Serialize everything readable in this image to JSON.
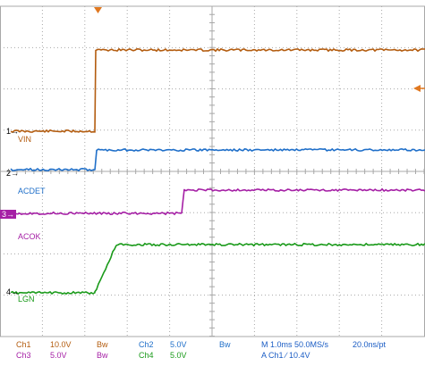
{
  "colors": {
    "ch1": "#b35c0f",
    "ch2": "#1f6fc9",
    "ch3": "#a51fa5",
    "ch4": "#1a9a1a",
    "grid": "#a8a8a8",
    "marker": "#e07820",
    "status_text": "#1a5cc4"
  },
  "channel_markers": [
    "1",
    "2",
    "3",
    "4"
  ],
  "trace_labels": {
    "vin": "VIN",
    "acdet": "ACDET",
    "acok": "ACOK",
    "lgn": "LGN"
  },
  "status": {
    "ch1_name": "Ch1",
    "ch1_scale": "10.0V",
    "ch1_bw": "Bw",
    "ch2_name": "Ch2",
    "ch2_scale": "5.0V",
    "ch2_bw": "Bw",
    "ch3_name": "Ch3",
    "ch3_scale": "5.0V",
    "ch3_bw": "Bw",
    "ch4_name": "Ch4",
    "ch4_scale": "5.0V",
    "timebase": "M 1.0ms 50.0MS/s",
    "resolution": "20.0ns/pt",
    "trigger": "A  Ch1  ∕  10.4V"
  },
  "icons": {
    "trigger_position": "trigger-position-icon",
    "trigger_level": "trigger-level-icon"
  }
}
